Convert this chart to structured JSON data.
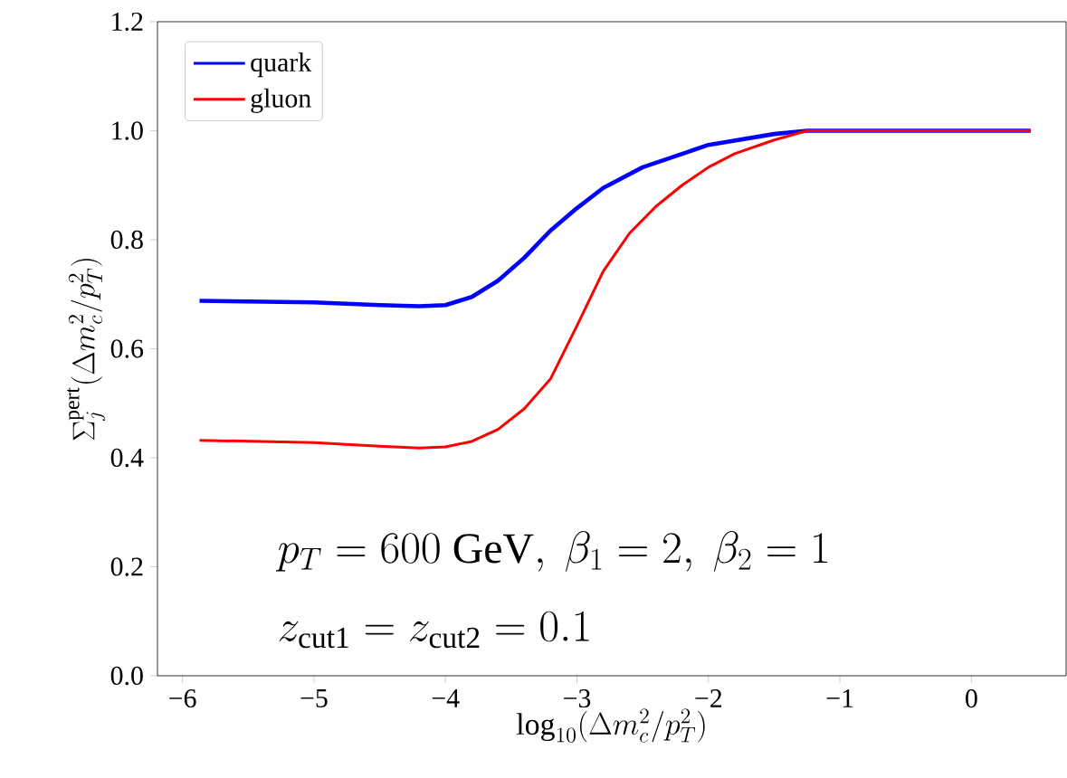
{
  "chart_data": {
    "type": "line",
    "xlabel": "\\log_{10}(\\Delta m_c^2/p_T^2)",
    "ylabel": "\\Sigma_j^{\\rm pert}(\\Delta m_c^2/p_T^2)",
    "annotations": [
      "p_T = 600~\\mathrm{GeV},\\ \\beta_1 = 2,\\ \\beta_2 = 1",
      "z_{\\mathrm{cut1}} = z_{\\mathrm{cut2}} = 0.1"
    ],
    "xlim": [
      -6.19,
      0.72
    ],
    "ylim": [
      0,
      1.2
    ],
    "xticks": [
      {
        "value": -6,
        "label": "−6"
      },
      {
        "value": -5,
        "label": "−5"
      },
      {
        "value": -4,
        "label": "−4"
      },
      {
        "value": -3,
        "label": "−3"
      },
      {
        "value": -2,
        "label": "−2"
      },
      {
        "value": -1,
        "label": "−1"
      },
      {
        "value": 0,
        "label": "0"
      }
    ],
    "yticks": [
      {
        "value": 0,
        "label": "0.0"
      },
      {
        "value": 0.2,
        "label": "0.2"
      },
      {
        "value": 0.4,
        "label": "0.4"
      },
      {
        "value": 0.6,
        "label": "0.6"
      },
      {
        "value": 0.8,
        "label": "0.8"
      },
      {
        "value": 1.0,
        "label": "1.0"
      },
      {
        "value": 1.2,
        "label": "1.2"
      }
    ],
    "legend": "top left",
    "grid": false,
    "marker": "none",
    "line_style": "solid",
    "series": [
      {
        "name": "quark",
        "color": "#0000ff",
        "x": [
          -5.87,
          -5.0,
          -4.5,
          -4.2,
          -4.0,
          -3.8,
          -3.6,
          -3.4,
          -3.2,
          -3.0,
          -2.8,
          -2.5,
          -2.0,
          -1.5,
          -1.25,
          0.45
        ],
        "values": [
          0.688,
          0.685,
          0.68,
          0.678,
          0.68,
          0.695,
          0.725,
          0.767,
          0.817,
          0.858,
          0.895,
          0.933,
          0.974,
          0.994,
          1.0,
          1.0
        ]
      },
      {
        "name": "gluon",
        "color": "#ff0000",
        "x": [
          -5.87,
          -5.0,
          -4.5,
          -4.2,
          -4.0,
          -3.8,
          -3.6,
          -3.4,
          -3.2,
          -3.0,
          -2.8,
          -2.6,
          -2.4,
          -2.2,
          -2.0,
          -1.8,
          -1.5,
          -1.25,
          0.45
        ],
        "values": [
          0.432,
          0.428,
          0.421,
          0.418,
          0.42,
          0.43,
          0.452,
          0.49,
          0.545,
          0.642,
          0.742,
          0.812,
          0.861,
          0.9,
          0.933,
          0.958,
          0.983,
          1.0,
          1.0
        ]
      }
    ]
  }
}
